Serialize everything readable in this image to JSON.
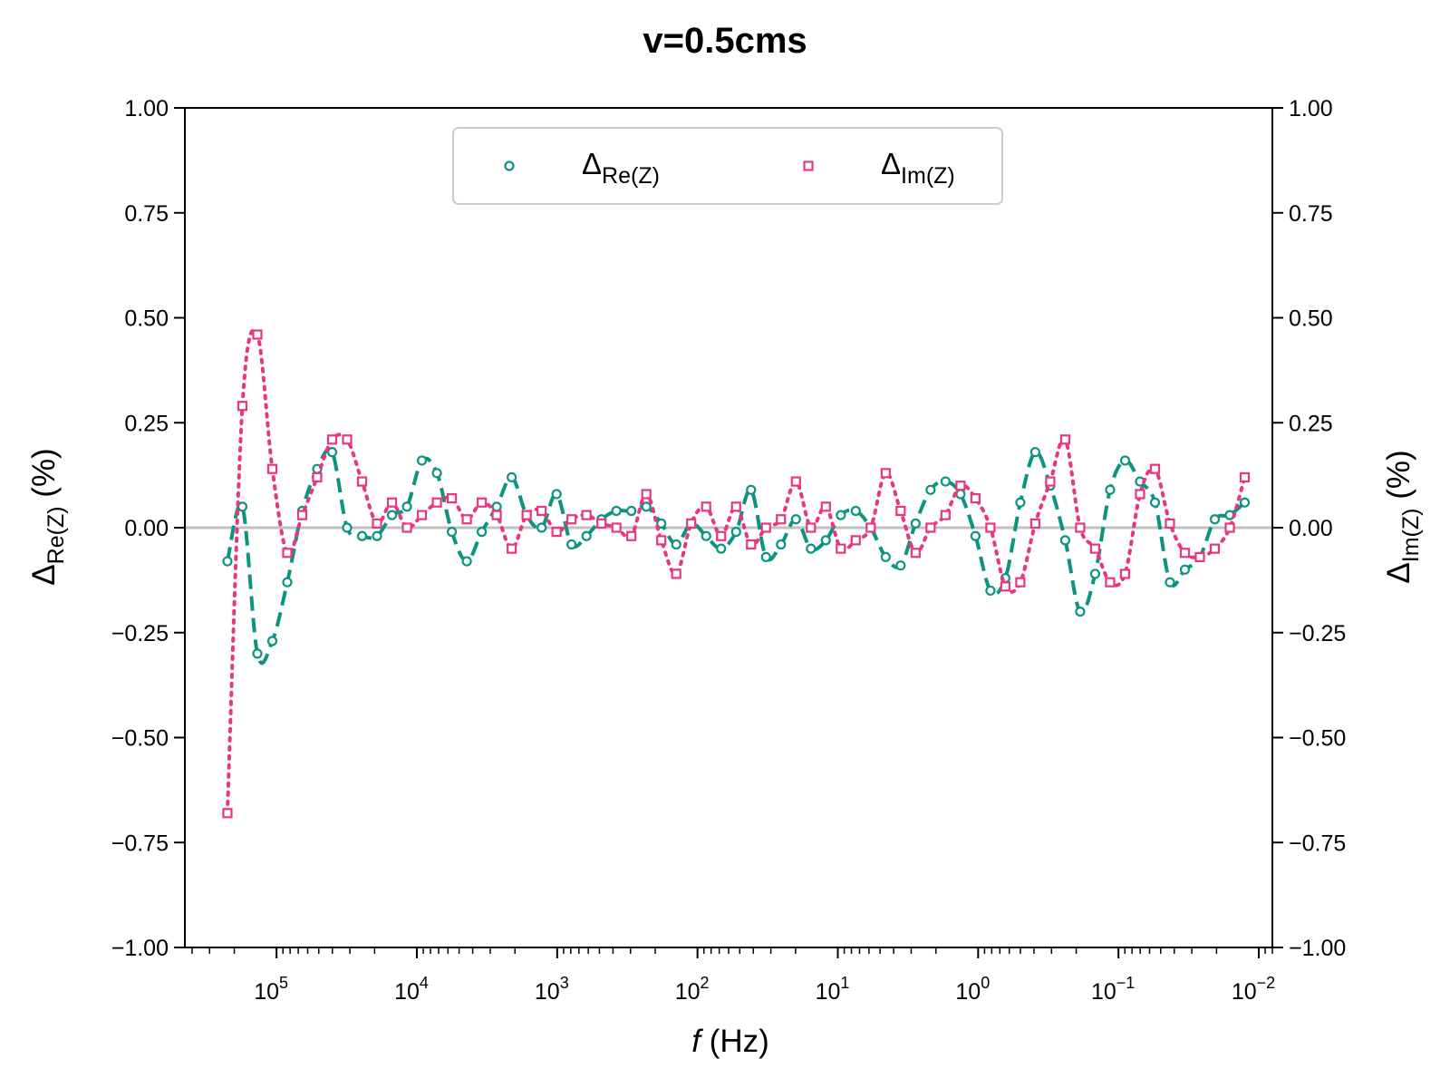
{
  "chart_data": {
    "type": "line",
    "title": "v=0.5cms",
    "xlabel": {
      "var": "f",
      "unit": "(Hz)"
    },
    "ylabel_left": {
      "base": "Δ",
      "sub": "Re(Z)",
      "unit": "(%)"
    },
    "ylabel_right": {
      "base": "Δ",
      "sub": "Im(Z)",
      "unit": "(%)"
    },
    "x_scale": "log",
    "x_reversed": true,
    "xlim_hz": [
      450000,
      0.008
    ],
    "x_tick_labels": [
      "10^5",
      "10^4",
      "10^3",
      "10^2",
      "10^1",
      "10^0",
      "10^-1",
      "10^-2"
    ],
    "ylim": [
      -1.0,
      1.0
    ],
    "y_ticks": [
      "1.00",
      "0.75",
      "0.50",
      "0.25",
      "0.00",
      "−0.25",
      "−0.50",
      "−0.75",
      "−1.00"
    ],
    "y_tick_values": [
      1.0,
      0.75,
      0.5,
      0.25,
      0.0,
      -0.25,
      -0.5,
      -0.75,
      -1.0
    ],
    "reference_line_y": 0,
    "legend_position": "upper center",
    "series": [
      {
        "label_base": "Δ",
        "label_sub": "Re(Z)",
        "color": "#0d9480",
        "marker": "circle",
        "line": "dashed",
        "values": [
          -0.08,
          0.05,
          -0.3,
          -0.27,
          -0.13,
          0.04,
          0.14,
          0.18,
          0.0,
          -0.02,
          -0.02,
          0.03,
          0.05,
          0.16,
          0.13,
          -0.01,
          -0.08,
          -0.01,
          0.05,
          0.12,
          0.03,
          0.0,
          0.08,
          -0.04,
          -0.02,
          0.02,
          0.04,
          0.04,
          0.05,
          0.01,
          -0.04,
          0.01,
          -0.02,
          -0.05,
          -0.01,
          0.09,
          -0.07,
          -0.04,
          0.02,
          -0.05,
          -0.03,
          0.03,
          0.04,
          0.0,
          -0.07,
          -0.09,
          0.01,
          0.09,
          0.11,
          0.08,
          -0.02,
          -0.15,
          -0.12,
          0.06,
          0.18,
          0.1,
          -0.03,
          -0.2,
          -0.11,
          0.09,
          0.16,
          0.11,
          0.06,
          -0.13,
          -0.1,
          -0.07,
          0.02,
          0.03,
          0.06
        ]
      },
      {
        "label_base": "Δ",
        "label_sub": "Im(Z)",
        "color": "#e8377f",
        "marker": "square",
        "line": "dotted",
        "values": [
          -0.68,
          0.29,
          0.46,
          0.14,
          -0.06,
          0.03,
          0.12,
          0.21,
          0.21,
          0.11,
          0.01,
          0.06,
          0.0,
          0.03,
          0.06,
          0.07,
          0.02,
          0.06,
          0.03,
          -0.05,
          0.03,
          0.04,
          -0.01,
          0.02,
          0.03,
          0.01,
          0.0,
          -0.02,
          0.08,
          -0.03,
          -0.11,
          0.01,
          0.05,
          -0.02,
          0.05,
          -0.04,
          0.0,
          0.02,
          0.11,
          0.0,
          0.05,
          -0.05,
          -0.03,
          0.0,
          0.13,
          0.04,
          -0.06,
          0.0,
          0.03,
          0.1,
          0.07,
          0.0,
          -0.14,
          -0.13,
          0.01,
          0.11,
          0.21,
          0.0,
          -0.05,
          -0.13,
          -0.11,
          0.08,
          0.14,
          0.01,
          -0.06,
          -0.07,
          -0.05,
          0.0,
          0.12
        ]
      }
    ]
  }
}
